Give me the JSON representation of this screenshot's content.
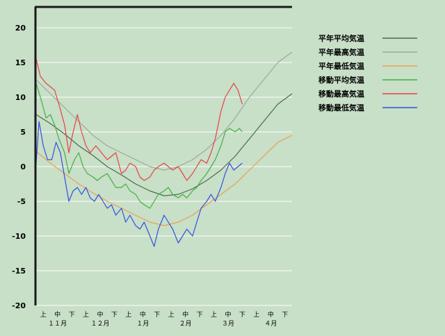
{
  "chart_data": {
    "type": "line",
    "title": "",
    "xlabel": "",
    "ylabel": "",
    "ylim": [
      -20,
      23
    ],
    "yticks": [
      20,
      15,
      10,
      5,
      0,
      -5,
      -10,
      -15,
      -20
    ],
    "grid": true,
    "legend_position": "right",
    "x_domain": [
      0,
      18
    ],
    "x_ticks": [
      {
        "x": 0.5,
        "label": "上"
      },
      {
        "x": 1.5,
        "label": "中"
      },
      {
        "x": 2.5,
        "label": "下"
      },
      {
        "x": 3.5,
        "label": "上"
      },
      {
        "x": 4.5,
        "label": "中"
      },
      {
        "x": 5.5,
        "label": "下"
      },
      {
        "x": 6.5,
        "label": "上"
      },
      {
        "x": 7.5,
        "label": "中"
      },
      {
        "x": 8.5,
        "label": "下"
      },
      {
        "x": 9.5,
        "label": "上"
      },
      {
        "x": 10.5,
        "label": "中"
      },
      {
        "x": 11.5,
        "label": "下"
      },
      {
        "x": 12.5,
        "label": "上"
      },
      {
        "x": 13.5,
        "label": "中"
      },
      {
        "x": 14.5,
        "label": "下"
      },
      {
        "x": 15.5,
        "label": "上"
      },
      {
        "x": 16.5,
        "label": "中"
      },
      {
        "x": 17.5,
        "label": "下"
      }
    ],
    "months": [
      {
        "x": 1.5,
        "label": "１１月"
      },
      {
        "x": 4.5,
        "label": "１２月"
      },
      {
        "x": 7.5,
        "label": "１月"
      },
      {
        "x": 10.5,
        "label": "２月"
      },
      {
        "x": 13.5,
        "label": "３月"
      },
      {
        "x": 16.5,
        "label": "４月"
      }
    ],
    "series": [
      {
        "name": "平年平均気温",
        "color": "#4a6a4a",
        "points": [
          [
            0,
            7.5
          ],
          [
            1,
            6.2
          ],
          [
            2,
            4.7
          ],
          [
            3,
            3.0
          ],
          [
            4,
            1.6
          ],
          [
            5,
            0.0
          ],
          [
            6,
            -1.2
          ],
          [
            7,
            -2.5
          ],
          [
            8,
            -3.5
          ],
          [
            9,
            -4.2
          ],
          [
            10,
            -4.0
          ],
          [
            11,
            -3.2
          ],
          [
            12,
            -2.0
          ],
          [
            13,
            -0.5
          ],
          [
            14,
            1.5
          ],
          [
            15,
            4.0
          ],
          [
            16,
            6.5
          ],
          [
            17,
            9.0
          ],
          [
            18,
            10.5
          ]
        ]
      },
      {
        "name": "平年最高気温",
        "color": "#9aaa9a",
        "points": [
          [
            0,
            12.5
          ],
          [
            1,
            10.5
          ],
          [
            2,
            8.5
          ],
          [
            3,
            6.5
          ],
          [
            4,
            4.5
          ],
          [
            5,
            3.0
          ],
          [
            6,
            2.0
          ],
          [
            7,
            1.0
          ],
          [
            8,
            0.0
          ],
          [
            9,
            -0.5
          ],
          [
            10,
            0.0
          ],
          [
            11,
            1.0
          ],
          [
            12,
            2.5
          ],
          [
            13,
            4.5
          ],
          [
            14,
            7.0
          ],
          [
            15,
            10.0
          ],
          [
            16,
            12.5
          ],
          [
            17,
            15.0
          ],
          [
            18,
            16.5
          ]
        ]
      },
      {
        "name": "平年最低気温",
        "color": "#e8a050",
        "points": [
          [
            0,
            2.2
          ],
          [
            1,
            0.5
          ],
          [
            2,
            -1.0
          ],
          [
            3,
            -2.5
          ],
          [
            4,
            -3.8
          ],
          [
            5,
            -5.0
          ],
          [
            6,
            -6.0
          ],
          [
            7,
            -7.0
          ],
          [
            8,
            -8.0
          ],
          [
            9,
            -8.5
          ],
          [
            10,
            -8.0
          ],
          [
            11,
            -7.0
          ],
          [
            12,
            -5.5
          ],
          [
            13,
            -4.0
          ],
          [
            14,
            -2.5
          ],
          [
            15,
            -0.5
          ],
          [
            16,
            1.5
          ],
          [
            17,
            3.5
          ],
          [
            18,
            4.5
          ]
        ]
      },
      {
        "name": "移動平均気温",
        "color": "#40b040",
        "points": [
          [
            0,
            12
          ],
          [
            0.3,
            10
          ],
          [
            0.7,
            7
          ],
          [
            1,
            7.5
          ],
          [
            1.3,
            6
          ],
          [
            1.6,
            4
          ],
          [
            2,
            2
          ],
          [
            2.3,
            -1
          ],
          [
            2.7,
            1
          ],
          [
            3,
            2
          ],
          [
            3.3,
            0
          ],
          [
            3.6,
            -1
          ],
          [
            4,
            -1.5
          ],
          [
            4.3,
            -2
          ],
          [
            4.6,
            -1.5
          ],
          [
            5,
            -1
          ],
          [
            5.3,
            -2
          ],
          [
            5.6,
            -3
          ],
          [
            6,
            -3
          ],
          [
            6.3,
            -2.5
          ],
          [
            6.6,
            -3.5
          ],
          [
            7,
            -4
          ],
          [
            7.3,
            -5
          ],
          [
            7.6,
            -5.5
          ],
          [
            8,
            -6
          ],
          [
            8.3,
            -5
          ],
          [
            8.6,
            -4
          ],
          [
            9,
            -3.5
          ],
          [
            9.3,
            -3
          ],
          [
            9.6,
            -4
          ],
          [
            10,
            -4.5
          ],
          [
            10.3,
            -4
          ],
          [
            10.6,
            -4.5
          ],
          [
            11,
            -3.5
          ],
          [
            11.3,
            -3
          ],
          [
            11.6,
            -2
          ],
          [
            12,
            -1
          ],
          [
            12.3,
            0
          ],
          [
            12.6,
            1
          ],
          [
            13,
            3
          ],
          [
            13.3,
            5
          ],
          [
            13.6,
            5.5
          ],
          [
            14,
            5
          ],
          [
            14.3,
            5.5
          ],
          [
            14.5,
            5
          ]
        ]
      },
      {
        "name": "移動最高気温",
        "color": "#e84040",
        "points": [
          [
            0,
            15.5
          ],
          [
            0.3,
            13
          ],
          [
            0.7,
            12
          ],
          [
            1,
            11.5
          ],
          [
            1.3,
            11
          ],
          [
            1.6,
            9
          ],
          [
            2,
            6
          ],
          [
            2.3,
            2
          ],
          [
            2.6,
            5
          ],
          [
            2.9,
            7.5
          ],
          [
            3.2,
            5
          ],
          [
            3.5,
            3
          ],
          [
            3.8,
            2
          ],
          [
            4.2,
            3
          ],
          [
            4.6,
            2
          ],
          [
            5,
            1
          ],
          [
            5.3,
            1.5
          ],
          [
            5.6,
            2
          ],
          [
            6,
            -1
          ],
          [
            6.3,
            -0.5
          ],
          [
            6.6,
            0.5
          ],
          [
            7,
            0
          ],
          [
            7.3,
            -1.5
          ],
          [
            7.6,
            -2
          ],
          [
            8,
            -1.5
          ],
          [
            8.3,
            -0.5
          ],
          [
            8.6,
            0
          ],
          [
            9,
            0.5
          ],
          [
            9.3,
            0
          ],
          [
            9.6,
            -0.5
          ],
          [
            10,
            0
          ],
          [
            10.3,
            -1
          ],
          [
            10.6,
            -2
          ],
          [
            11,
            -1
          ],
          [
            11.3,
            0
          ],
          [
            11.6,
            1
          ],
          [
            12,
            0.5
          ],
          [
            12.3,
            2
          ],
          [
            12.6,
            4
          ],
          [
            13,
            8
          ],
          [
            13.3,
            10
          ],
          [
            13.6,
            11
          ],
          [
            13.9,
            12
          ],
          [
            14.2,
            11
          ],
          [
            14.5,
            9
          ]
        ]
      },
      {
        "name": "移動最低気温",
        "color": "#3050e0",
        "points": [
          [
            0,
            0.5
          ],
          [
            0.2,
            6.5
          ],
          [
            0.5,
            3
          ],
          [
            0.8,
            1
          ],
          [
            1.1,
            1
          ],
          [
            1.4,
            3.5
          ],
          [
            1.7,
            2
          ],
          [
            2,
            -1.5
          ],
          [
            2.3,
            -5
          ],
          [
            2.6,
            -3.5
          ],
          [
            2.9,
            -3
          ],
          [
            3.2,
            -4
          ],
          [
            3.5,
            -3
          ],
          [
            3.8,
            -4.5
          ],
          [
            4.1,
            -5
          ],
          [
            4.4,
            -4
          ],
          [
            4.7,
            -5
          ],
          [
            5,
            -6
          ],
          [
            5.3,
            -5.5
          ],
          [
            5.6,
            -7
          ],
          [
            6,
            -6
          ],
          [
            6.3,
            -8
          ],
          [
            6.6,
            -7
          ],
          [
            7,
            -8.5
          ],
          [
            7.3,
            -9
          ],
          [
            7.6,
            -8
          ],
          [
            8,
            -10
          ],
          [
            8.3,
            -11.5
          ],
          [
            8.6,
            -9
          ],
          [
            9,
            -7
          ],
          [
            9.3,
            -8
          ],
          [
            9.6,
            -9
          ],
          [
            10,
            -11
          ],
          [
            10.3,
            -10
          ],
          [
            10.6,
            -9
          ],
          [
            11,
            -10
          ],
          [
            11.3,
            -8
          ],
          [
            11.6,
            -6
          ],
          [
            12,
            -5
          ],
          [
            12.3,
            -4
          ],
          [
            12.6,
            -5
          ],
          [
            13,
            -3
          ],
          [
            13.3,
            -1
          ],
          [
            13.6,
            0.5
          ],
          [
            13.9,
            -0.5
          ],
          [
            14.2,
            0
          ],
          [
            14.5,
            0.5
          ]
        ]
      }
    ]
  }
}
